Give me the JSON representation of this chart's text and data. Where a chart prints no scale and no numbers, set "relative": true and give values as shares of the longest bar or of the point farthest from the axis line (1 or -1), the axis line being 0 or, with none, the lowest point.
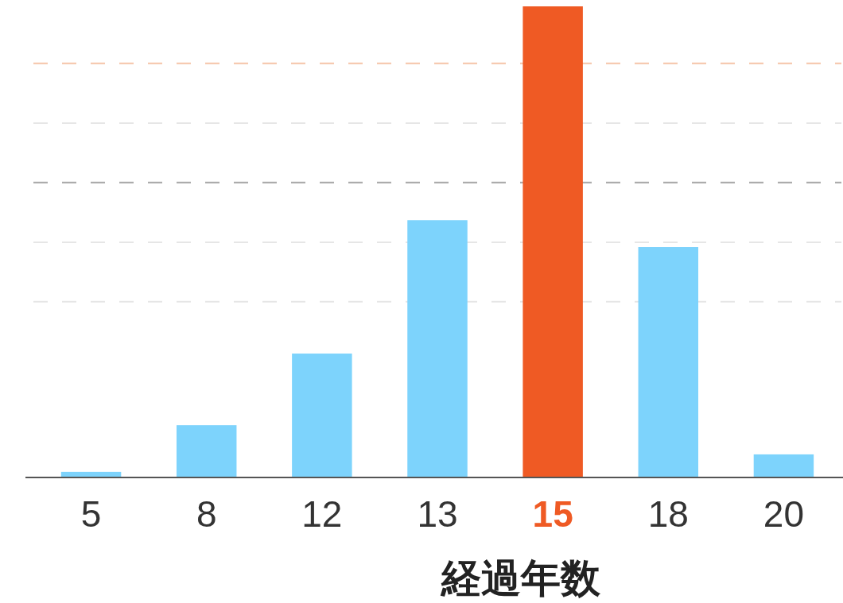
{
  "chart_data": {
    "type": "bar",
    "relative": true,
    "xlabel": "経過年数",
    "categories": [
      "5",
      "8",
      "12",
      "13",
      "15",
      "18",
      "20"
    ],
    "values": [
      0.012,
      0.111,
      0.263,
      0.546,
      1,
      0.489,
      0.049
    ],
    "colors": [
      "#7dd3fc",
      "#7dd3fc",
      "#7dd3fc",
      "#7dd3fc",
      "#ef5a24",
      "#7dd3fc",
      "#7dd3fc"
    ],
    "ref_lines": [
      {
        "axis": "y",
        "value": 0.879,
        "color": "#f5c4a8",
        "line_style": "dashed"
      },
      {
        "axis": "y",
        "value": 0.752,
        "color": "#e6e6e6",
        "line_style": "dashed"
      },
      {
        "axis": "y",
        "value": 0.626,
        "color": "#a8a8a8",
        "line_style": "dashed"
      },
      {
        "axis": "y",
        "value": 0.499,
        "color": "#e6e6e6",
        "line_style": "dashed"
      },
      {
        "axis": "y",
        "value": 0.373,
        "color": "#e6e6e6",
        "line_style": "dashed"
      }
    ]
  }
}
